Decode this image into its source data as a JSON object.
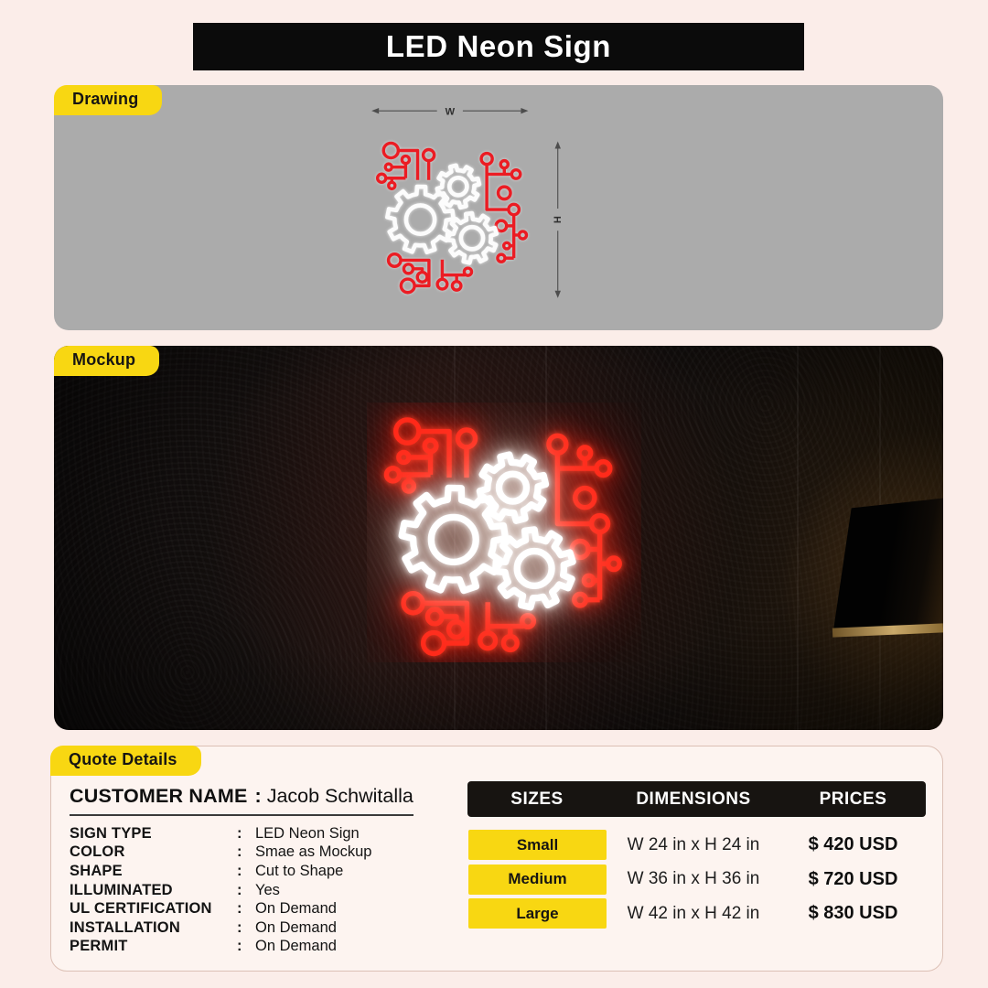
{
  "page": {
    "title": "LED Neon Sign"
  },
  "colors": {
    "background_pink": "#FBEDE9",
    "accent_yellow": "#F8D712",
    "drawing_red": "#EB1C23",
    "neon_red": "#FF2A1A",
    "neon_white": "#FFFFFF",
    "panel_gray": "#ABABAB",
    "header_black": "#0B0B0B"
  },
  "drawing": {
    "tab_label": "Drawing",
    "width_label": "W",
    "height_label": "H"
  },
  "mockup": {
    "tab_label": "Mockup"
  },
  "quote": {
    "tab_label": "Quote Details",
    "separator": ":",
    "customer": {
      "label": "CUSTOMER NAME",
      "value": "Jacob Schwitalla"
    },
    "fields": [
      {
        "label": "SIGN TYPE",
        "value": "LED Neon Sign"
      },
      {
        "label": "COLOR",
        "value": "Smae as Mockup"
      },
      {
        "label": "SHAPE",
        "value": "Cut to Shape"
      },
      {
        "label": "ILLUMINATED",
        "value": "Yes"
      },
      {
        "label": "UL CERTIFICATION",
        "value": "On Demand"
      },
      {
        "label": "INSTALLATION",
        "value": "On Demand"
      },
      {
        "label": "PERMIT",
        "value": "On Demand"
      }
    ],
    "table": {
      "headers": [
        "SIZES",
        "DIMENSIONS",
        "PRICES"
      ],
      "rows": [
        {
          "size": "Small",
          "dimensions": "W 24 in x H 24 in",
          "price": "$ 420 USD"
        },
        {
          "size": "Medium",
          "dimensions": "W 36 in x H 36 in",
          "price": "$ 720 USD"
        },
        {
          "size": "Large",
          "dimensions": "W 42 in x H 42 in",
          "price": "$ 830 USD"
        }
      ]
    }
  }
}
